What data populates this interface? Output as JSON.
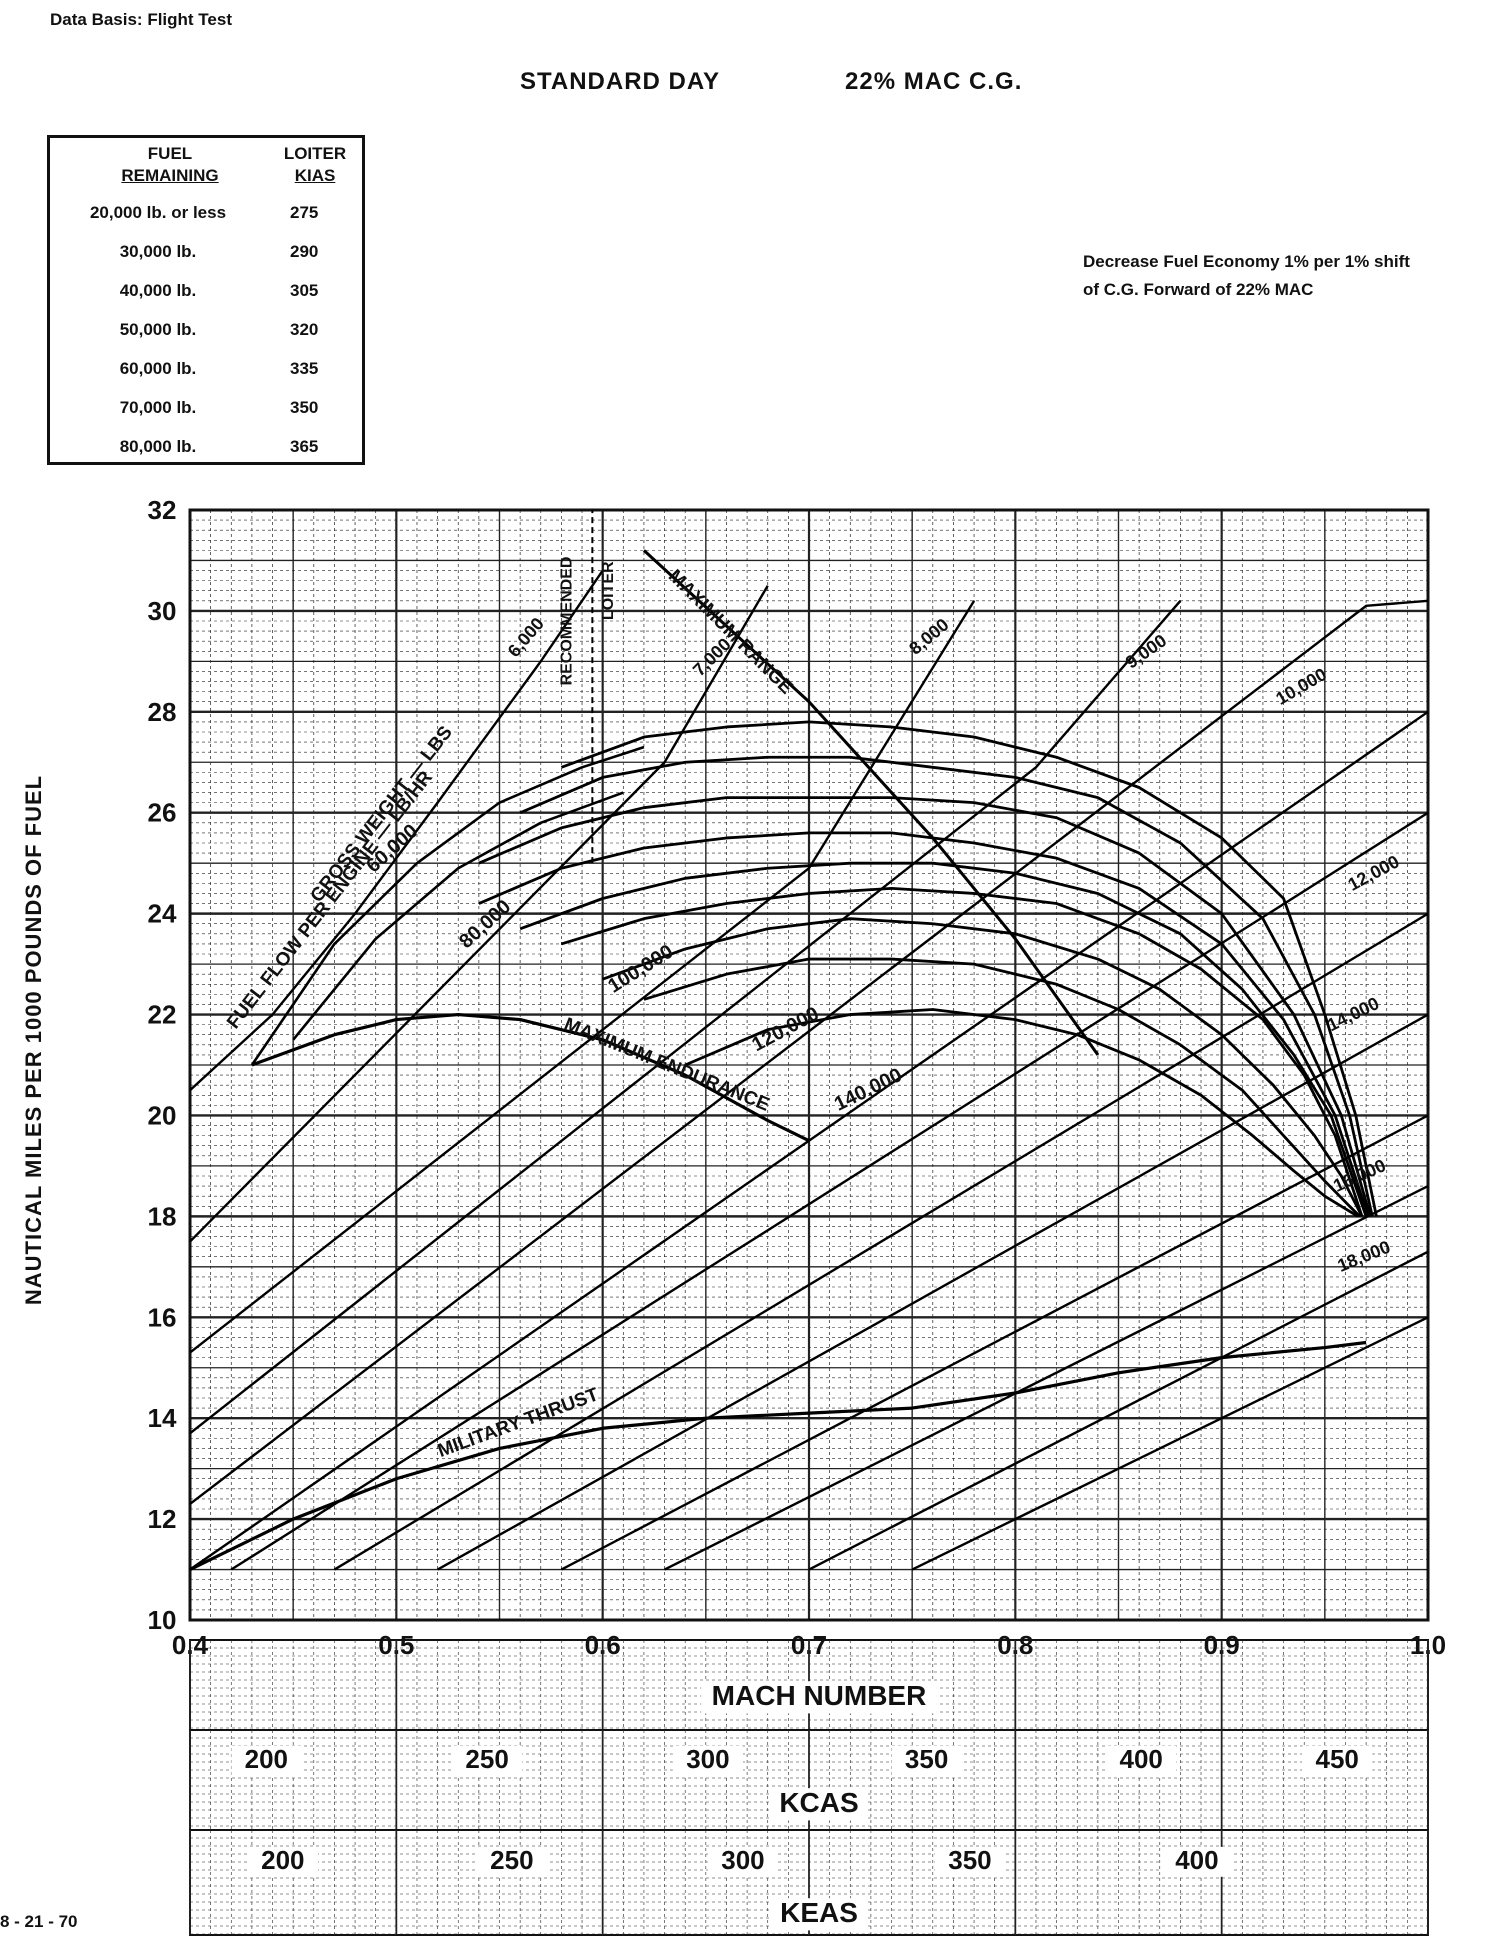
{
  "header": {
    "data_basis": "Data Basis: Flight Test",
    "condition_1": "STANDARD DAY",
    "condition_2": "22% MAC C.G."
  },
  "note": {
    "line1": "Decrease Fuel Economy 1% per 1% shift",
    "line2": "of C.G. Forward of 22% MAC"
  },
  "footer": "8 - 21 - 70",
  "loiter_table": {
    "header_fuel_1": "FUEL",
    "header_fuel_2": "REMAINING",
    "header_kias_1": "LOITER",
    "header_kias_2": "KIAS",
    "rows": [
      {
        "fuel": "20,000 lb. or less",
        "kias": "275"
      },
      {
        "fuel": "30,000 lb.",
        "kias": "290"
      },
      {
        "fuel": "40,000 lb.",
        "kias": "305"
      },
      {
        "fuel": "50,000 lb.",
        "kias": "320"
      },
      {
        "fuel": "60,000 lb.",
        "kias": "335"
      },
      {
        "fuel": "70,000 lb.",
        "kias": "350"
      },
      {
        "fuel": "80,000 lb.",
        "kias": "365"
      }
    ]
  },
  "chart_data": {
    "type": "line",
    "xlabel": "MACH NUMBER",
    "ylabel": "NAUTICAL MILES PER 1000 POUNDS OF FUEL",
    "xlim": [
      0.4,
      1.0
    ],
    "ylim": [
      10,
      32
    ],
    "grid": true,
    "x_ticks": [
      "0.4",
      "0.5",
      "0.6",
      "0.7",
      "0.8",
      "0.9",
      "1.0"
    ],
    "y_ticks": [
      "10",
      "12",
      "14",
      "16",
      "18",
      "20",
      "22",
      "24",
      "26",
      "28",
      "30",
      "32"
    ],
    "secondary_axes": [
      {
        "label": "KCAS",
        "ticks": [
          {
            "label": "200",
            "mach": 0.437
          },
          {
            "label": "250",
            "mach": 0.544
          },
          {
            "label": "300",
            "mach": 0.651
          },
          {
            "label": "350",
            "mach": 0.757
          },
          {
            "label": "400",
            "mach": 0.861
          },
          {
            "label": "450",
            "mach": 0.956
          }
        ]
      },
      {
        "label": "KEAS",
        "ticks": [
          {
            "label": "200",
            "mach": 0.445
          },
          {
            "label": "250",
            "mach": 0.556
          },
          {
            "label": "300",
            "mach": 0.668
          },
          {
            "label": "350",
            "mach": 0.778
          },
          {
            "label": "400",
            "mach": 0.888
          }
        ]
      }
    ],
    "labels": {
      "fuel_flow": "FUEL FLOW PER ENGINE — LB/HR",
      "gross_weight": "GROSS WEIGHT — LBS",
      "max_range": "MAXIMUM RANGE",
      "max_endurance": "MAXIMUM ENDURANCE",
      "recommended_loiter": "RECOMMENDED LOITER",
      "military_thrust": "MILITARY THRUST"
    },
    "gross_weight_series": [
      {
        "name": "60,000",
        "x": [
          0.58,
          0.62,
          0.66,
          0.7,
          0.74,
          0.78,
          0.82,
          0.86,
          0.9,
          0.93,
          0.95,
          0.965,
          0.975
        ],
        "y": [
          26.9,
          27.5,
          27.7,
          27.8,
          27.7,
          27.5,
          27.1,
          26.5,
          25.5,
          24.3,
          22.0,
          20.0,
          18.0
        ]
      },
      {
        "name": "",
        "x": [
          0.56,
          0.6,
          0.64,
          0.68,
          0.72,
          0.76,
          0.8,
          0.84,
          0.88,
          0.92,
          0.945,
          0.962,
          0.973
        ],
        "y": [
          26.0,
          26.7,
          27.0,
          27.1,
          27.1,
          26.9,
          26.7,
          26.3,
          25.4,
          23.9,
          22.0,
          20.0,
          18.0
        ]
      },
      {
        "name": "80,000",
        "x": [
          0.54,
          0.58,
          0.62,
          0.66,
          0.7,
          0.74,
          0.78,
          0.82,
          0.86,
          0.9,
          0.935,
          0.958,
          0.972
        ],
        "y": [
          25.0,
          25.7,
          26.1,
          26.3,
          26.3,
          26.3,
          26.2,
          25.9,
          25.2,
          24.0,
          22.0,
          20.0,
          18.0
        ]
      },
      {
        "name": "",
        "x": [
          0.54,
          0.58,
          0.62,
          0.66,
          0.7,
          0.74,
          0.78,
          0.82,
          0.86,
          0.9,
          0.93,
          0.955,
          0.971
        ],
        "y": [
          24.2,
          24.9,
          25.3,
          25.5,
          25.6,
          25.6,
          25.4,
          25.1,
          24.5,
          23.4,
          21.9,
          20.0,
          18.0
        ]
      },
      {
        "name": "100,000",
        "x": [
          0.56,
          0.6,
          0.64,
          0.68,
          0.72,
          0.76,
          0.8,
          0.84,
          0.88,
          0.91,
          0.935,
          0.953,
          0.97
        ],
        "y": [
          23.7,
          24.3,
          24.7,
          24.9,
          25.0,
          25.0,
          24.8,
          24.4,
          23.6,
          22.5,
          21.2,
          20.0,
          18.0
        ]
      },
      {
        "name": "",
        "x": [
          0.58,
          0.62,
          0.66,
          0.7,
          0.74,
          0.78,
          0.82,
          0.86,
          0.89,
          0.92,
          0.94,
          0.955,
          0.968
        ],
        "y": [
          23.4,
          23.9,
          24.2,
          24.4,
          24.5,
          24.4,
          24.2,
          23.6,
          22.9,
          21.9,
          20.8,
          19.6,
          18.0
        ]
      },
      {
        "name": "120,000",
        "x": [
          0.6,
          0.64,
          0.68,
          0.72,
          0.76,
          0.8,
          0.84,
          0.87,
          0.9,
          0.925,
          0.945,
          0.958,
          0.968
        ],
        "y": [
          22.7,
          23.3,
          23.7,
          23.9,
          23.8,
          23.6,
          23.1,
          22.5,
          21.6,
          20.6,
          19.6,
          18.8,
          18.0
        ]
      },
      {
        "name": "",
        "x": [
          0.62,
          0.66,
          0.7,
          0.74,
          0.78,
          0.82,
          0.85,
          0.88,
          0.91,
          0.93,
          0.95,
          0.962,
          0.967
        ],
        "y": [
          22.3,
          22.8,
          23.1,
          23.1,
          23.0,
          22.6,
          22.1,
          21.4,
          20.5,
          19.6,
          18.7,
          18.2,
          18.0
        ]
      },
      {
        "name": "140,000",
        "x": [
          0.64,
          0.68,
          0.72,
          0.76,
          0.8,
          0.83,
          0.86,
          0.89,
          0.915,
          0.935,
          0.95,
          0.962,
          0.966
        ],
        "y": [
          21.0,
          21.7,
          22.0,
          22.1,
          21.9,
          21.6,
          21.1,
          20.4,
          19.6,
          18.9,
          18.4,
          18.1,
          18.0
        ]
      }
    ],
    "low_weight_series": [
      {
        "name": "",
        "x": [
          0.43,
          0.47,
          0.51,
          0.55,
          0.59,
          0.62
        ],
        "y": [
          21.0,
          23.4,
          25.0,
          26.2,
          26.9,
          27.3
        ]
      },
      {
        "name": "",
        "x": [
          0.45,
          0.49,
          0.53,
          0.57,
          0.61
        ],
        "y": [
          21.5,
          23.5,
          24.9,
          25.8,
          26.4
        ]
      }
    ],
    "fuel_flow_series": [
      {
        "name": "6,000",
        "x": [
          0.4,
          0.44,
          0.48,
          0.52,
          0.57,
          0.6
        ],
        "y": [
          20.5,
          22.0,
          24.0,
          26.2,
          29.0,
          30.8
        ]
      },
      {
        "name": "7,000",
        "x": [
          0.4,
          0.63,
          0.68
        ],
        "y": [
          17.5,
          27.0,
          30.5
        ]
      },
      {
        "name": "8,000",
        "x": [
          0.4,
          0.7,
          0.78
        ],
        "y": [
          15.3,
          24.9,
          30.2
        ]
      },
      {
        "name": "9,000",
        "x": [
          0.4,
          0.81,
          0.88
        ],
        "y": [
          13.7,
          26.9,
          30.2
        ]
      },
      {
        "name": "10,000",
        "x": [
          0.4,
          0.97,
          1.0
        ],
        "y": [
          12.3,
          30.1,
          30.2
        ]
      },
      {
        "name": "",
        "x": [
          0.4,
          1.0
        ],
        "y": [
          11.0,
          28.0
        ]
      },
      {
        "name": "12,000",
        "x": [
          0.42,
          1.0
        ],
        "y": [
          11.0,
          26.0
        ]
      },
      {
        "name": "",
        "x": [
          0.47,
          1.0
        ],
        "y": [
          11.0,
          24.0
        ]
      },
      {
        "name": "14,000",
        "x": [
          0.52,
          1.0
        ],
        "y": [
          11.0,
          22.0
        ]
      },
      {
        "name": "",
        "x": [
          0.58,
          1.0
        ],
        "y": [
          11.0,
          20.0
        ]
      },
      {
        "name": "16,000",
        "x": [
          0.63,
          1.0
        ],
        "y": [
          11.0,
          18.6
        ]
      },
      {
        "name": "",
        "x": [
          0.7,
          1.0
        ],
        "y": [
          11.0,
          17.3
        ]
      },
      {
        "name": "18,000",
        "x": [
          0.75,
          1.0
        ],
        "y": [
          11.0,
          16.0
        ]
      }
    ],
    "military_thrust": {
      "x": [
        0.4,
        0.45,
        0.5,
        0.55,
        0.6,
        0.65,
        0.7,
        0.75,
        0.8,
        0.85,
        0.9,
        0.95,
        0.97
      ],
      "y": [
        11.0,
        12.0,
        12.8,
        13.4,
        13.8,
        14.0,
        14.1,
        14.2,
        14.5,
        14.9,
        15.2,
        15.4,
        15.5
      ]
    },
    "max_endurance": {
      "x": [
        0.43,
        0.47,
        0.5,
        0.53,
        0.56,
        0.6,
        0.64,
        0.68,
        0.7
      ],
      "y": [
        21.0,
        21.6,
        21.9,
        22.0,
        21.9,
        21.5,
        20.8,
        19.9,
        19.5
      ]
    },
    "max_range": {
      "x": [
        0.62,
        0.7,
        0.76,
        0.8,
        0.84
      ],
      "y": [
        31.2,
        28.2,
        25.5,
        23.5,
        21.2
      ]
    },
    "recommended_loiter": {
      "x": [
        0.595,
        0.595
      ],
      "y": [
        25.0,
        32.0
      ]
    },
    "x_minor_step": 0.01,
    "y_minor_step": 0.2
  }
}
